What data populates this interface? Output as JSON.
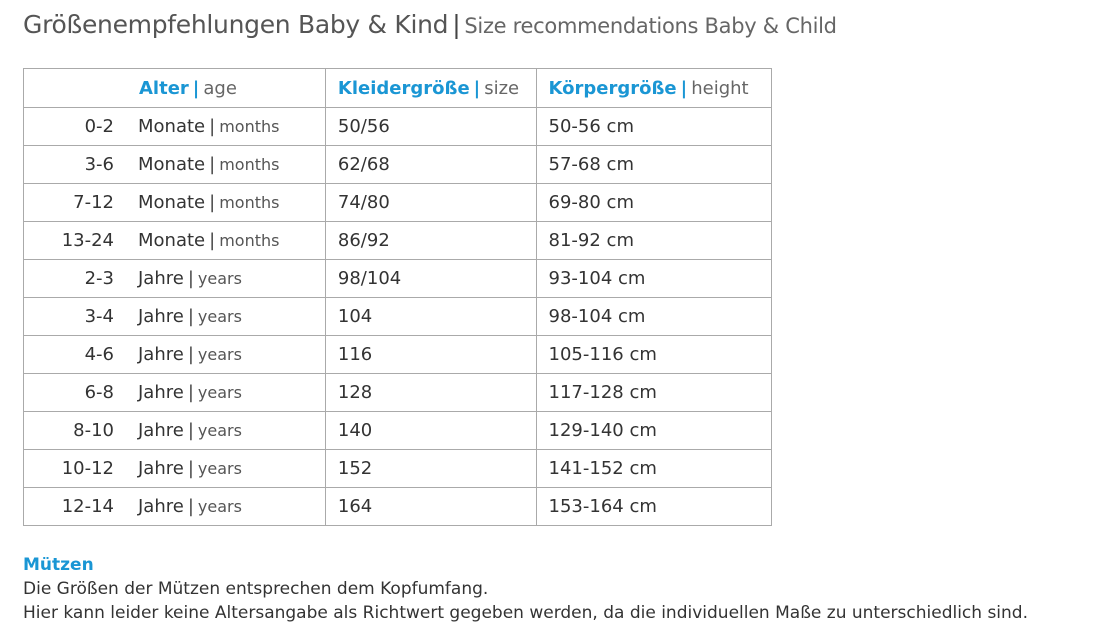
{
  "header": {
    "title": "Größenempfehlungen Baby & Kind",
    "subtitle": "Size recommendations Baby & Child"
  },
  "separator": "|",
  "table": {
    "columns": [
      {
        "de": "Alter",
        "en": "age"
      },
      {
        "de": "Kleidergröße",
        "en": "size"
      },
      {
        "de": "Körpergröße",
        "en": "height"
      }
    ],
    "rows": [
      {
        "range": "0-2",
        "unit_de": "Monate",
        "unit_en": "months",
        "size": "50/56",
        "height": "50-56 cm"
      },
      {
        "range": "3-6",
        "unit_de": "Monate",
        "unit_en": "months",
        "size": "62/68",
        "height": "57-68 cm"
      },
      {
        "range": "7-12",
        "unit_de": "Monate",
        "unit_en": "months",
        "size": "74/80",
        "height": "69-80 cm"
      },
      {
        "range": "13-24",
        "unit_de": "Monate",
        "unit_en": "months",
        "size": "86/92",
        "height": "81-92 cm"
      },
      {
        "range": "2-3",
        "unit_de": "Jahre",
        "unit_en": "years",
        "size": "98/104",
        "height": "93-104 cm"
      },
      {
        "range": "3-4",
        "unit_de": "Jahre",
        "unit_en": "years",
        "size": "104",
        "height": "98-104 cm"
      },
      {
        "range": "4-6",
        "unit_de": "Jahre",
        "unit_en": "years",
        "size": "116",
        "height": "105-116 cm"
      },
      {
        "range": "6-8",
        "unit_de": "Jahre",
        "unit_en": "years",
        "size": "128",
        "height": "117-128 cm"
      },
      {
        "range": "8-10",
        "unit_de": "Jahre",
        "unit_en": "years",
        "size": "140",
        "height": "129-140 cm"
      },
      {
        "range": "10-12",
        "unit_de": "Jahre",
        "unit_en": "years",
        "size": "152",
        "height": "141-152 cm"
      },
      {
        "range": "12-14",
        "unit_de": "Jahre",
        "unit_en": "years",
        "size": "164",
        "height": "153-164 cm"
      }
    ]
  },
  "notes": {
    "heading": "Mützen",
    "lines": [
      "Die Größen der Mützen entsprechen dem Kopfumfang.",
      "Hier kann leider keine Altersangabe als Richtwert gegeben werden, da die individuellen Maße zu unterschiedlich sind."
    ]
  }
}
